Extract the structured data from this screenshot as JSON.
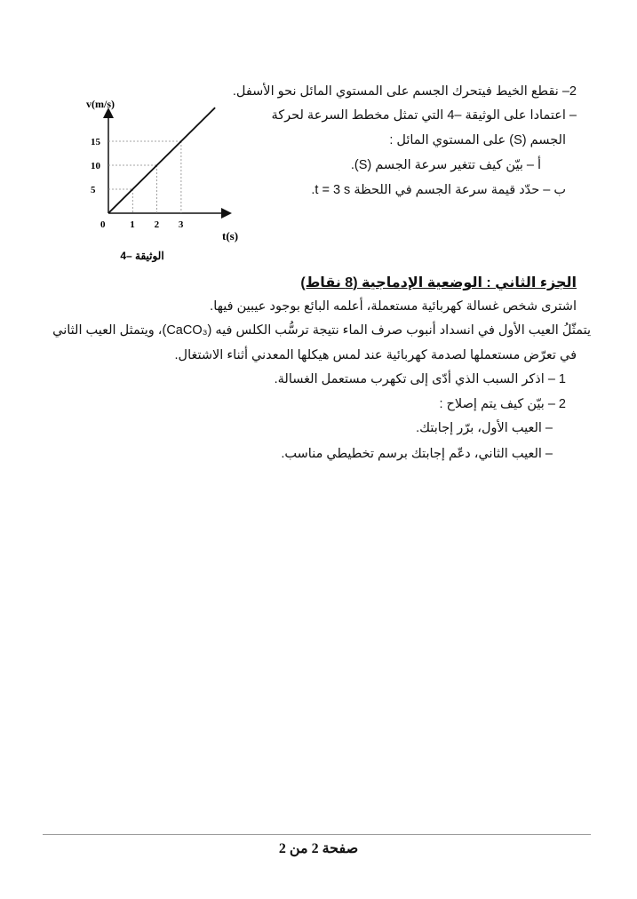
{
  "part1": {
    "lines": [
      "2– نقطع الخيط فيتحرك الجسم على المستوي المائل نحو الأسفل.",
      "– اعتمادا على الوثيقة –4  التي تمثل  مخطط  السرعة لحركة",
      "الجسم (S) على المستوي المائل :",
      "أ – بيّن كيف تتغير سرعة الجسم (S).",
      "ب – حدّد قيمة سرعة الجسم في اللحظة t = 3 s."
    ]
  },
  "chart_data": {
    "type": "line",
    "x": [
      0,
      1,
      2,
      3
    ],
    "y": [
      0,
      5,
      10,
      15
    ],
    "xlabel": "t(s)",
    "ylabel": "v(m/s)",
    "xticks": [
      "1",
      "2",
      "3"
    ],
    "yticks": [
      "5",
      "10",
      "15"
    ],
    "origin_label": "0",
    "caption": "الوثيقة –4",
    "grid": "dotted guide lines at data points"
  },
  "part2": {
    "heading": "الجزء الثاني : الوضعية الإدماجية (8 نقاط)",
    "lines": [
      "اشترى شخص غسالة كهربائية مستعملة، أعلمه البائع بوجود عيبين فيها.",
      "يتمثّلُ العيب الأول في انسداد أنبوب صرف الماء نتيجة ترسُّب الكلس فيه (CaCO₃)، ويتمثل العيب الثاني",
      "في تعرّض مستعملها لصدمة كهربائية عند لمس هيكلها المعدني أثناء الاشتغال.",
      "1 – اذكر السبب الذي أدّى إلى تكهرب مستعمل الغسالة.",
      "2 – بيّن كيف يتم إصلاح :",
      "– العيب الأول، برّر إجابتك.",
      "– العيب الثاني، دعّم إجابتك برسم تخطيطي مناسب."
    ]
  },
  "footer": {
    "page": "صفحة 2 من 2"
  }
}
